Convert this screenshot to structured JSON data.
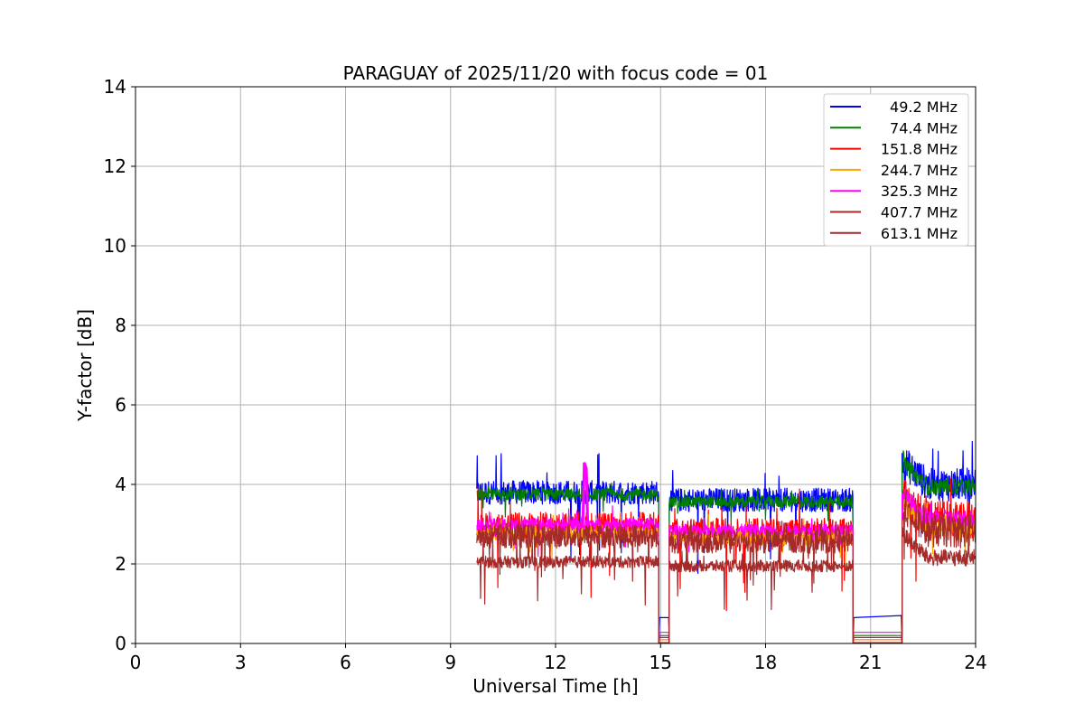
{
  "chart_data": {
    "type": "line",
    "title": "PARAGUAY of 2025/11/20 with focus code = 01",
    "xlabel": "Universal Time [h]",
    "ylabel": "Y-factor [dB]",
    "xlim": [
      0,
      24
    ],
    "ylim": [
      0,
      14
    ],
    "xticks": [
      0,
      3,
      6,
      9,
      12,
      15,
      18,
      21,
      24
    ],
    "yticks": [
      0,
      2,
      4,
      6,
      8,
      10,
      12,
      14
    ],
    "grid": true,
    "legend_position": "top-right",
    "segments": [
      {
        "start": 9.75,
        "end": 14.95,
        "scale": 1.0,
        "noise": 1.0
      },
      {
        "start": 15.25,
        "end": 20.5,
        "scale": 0.95,
        "noise": 1.0
      },
      {
        "start": 21.9,
        "end": 24.0,
        "scale": 1.05,
        "noise": 1.4
      }
    ],
    "gaps": [
      {
        "start": 14.95,
        "end": 15.25,
        "level": 0.05
      },
      {
        "start": 20.5,
        "end": 21.9,
        "level": 0.2
      }
    ],
    "series": [
      {
        "name": " 49.2 MHz",
        "color": "#0000ff",
        "base": 3.8,
        "noise": 0.3,
        "spike": 0.5,
        "gap_level": 0.65
      },
      {
        "name": " 74.4 MHz",
        "color": "#008000",
        "base": 3.75,
        "noise": 0.15,
        "spike": 0.15,
        "gap_level": 0.2
      },
      {
        "name": "151.8 MHz",
        "color": "#ff0000",
        "base": 2.95,
        "noise": 0.35,
        "spike": 0.5,
        "gap_level": 0.1
      },
      {
        "name": "244.7 MHz",
        "color": "#ffa500",
        "base": 2.8,
        "noise": 0.2,
        "spike": 0.2,
        "gap_level": 0.1
      },
      {
        "name": "325.3 MHz",
        "color": "#ff00ff",
        "base": 3.0,
        "noise": 0.15,
        "spike": 0.2,
        "gap_level": 0.28
      },
      {
        "name": "407.7 MHz",
        "color": "#a52a2a",
        "base": 2.7,
        "noise": 0.3,
        "spike": 0.3,
        "gap_level": 0.15
      },
      {
        "name": "613.1 MHz",
        "color": "#a52a2a",
        "base": 2.05,
        "noise": 0.15,
        "spike": 0.35,
        "gap_level": 0.02
      }
    ]
  }
}
